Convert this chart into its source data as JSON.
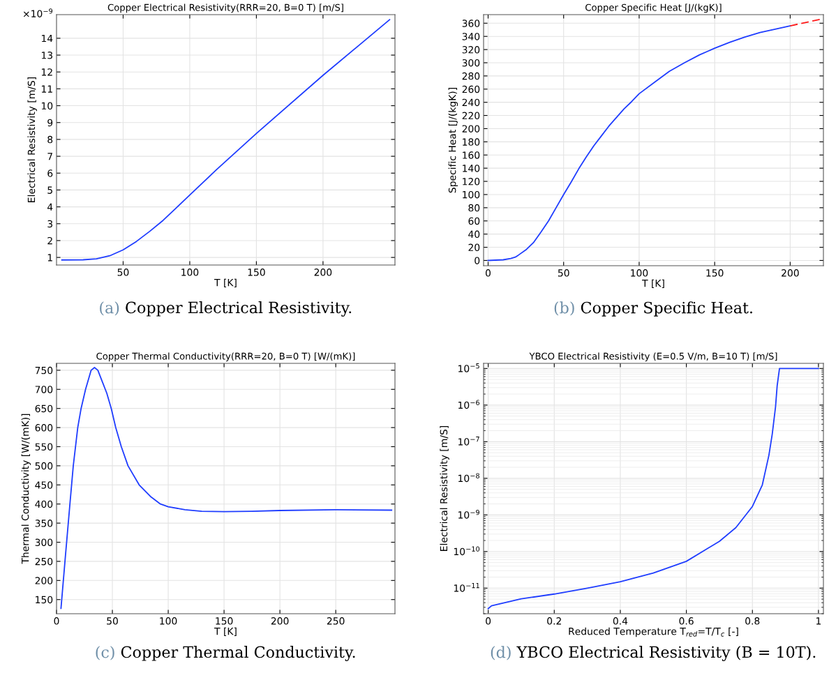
{
  "chart_data": [
    {
      "type": "line",
      "title": "Copper Electrical Resistivity(RRR=20, B=0 T) [m/S]",
      "xlabel": "T [K]",
      "ylabel": "Electrical Resistivity [m/S]",
      "grid": true,
      "xlim": [
        0,
        254
      ],
      "ylim": [
        0.55,
        15.4
      ],
      "xticks": [
        50,
        100,
        150,
        200
      ],
      "yticks": [
        1,
        2,
        3,
        4,
        5,
        6,
        7,
        8,
        9,
        10,
        11,
        12,
        13,
        14
      ],
      "series": [
        {
          "color": "#1f3dff",
          "x": [
            4,
            20,
            30,
            40,
            50,
            60,
            70,
            80,
            90,
            100,
            120,
            150,
            200,
            250
          ],
          "values": [
            0.85,
            0.86,
            0.92,
            1.1,
            1.45,
            1.95,
            2.55,
            3.2,
            3.95,
            4.7,
            6.2,
            8.35,
            11.8,
            15.1
          ]
        }
      ],
      "annotations": [
        "×10$^{−9}$",
        "(a) Copper Electrical Resistivity."
      ]
    },
    {
      "type": "line",
      "title": "Copper Specific Heat [J/(kgK)]",
      "xlabel": "T [K]",
      "ylabel": "Specific Heat [J/(kgK)]",
      "grid": true,
      "xlim": [
        -3,
        222
      ],
      "ylim": [
        -8,
        373
      ],
      "xticks": [
        0,
        50,
        100,
        150,
        200
      ],
      "yticks": [
        0,
        20,
        40,
        60,
        80,
        100,
        120,
        140,
        160,
        180,
        200,
        220,
        240,
        260,
        280,
        300,
        320,
        340,
        360
      ],
      "series": [
        {
          "color": "#1f3dff",
          "line_style": "solid",
          "x": [
            0,
            10,
            15,
            18,
            20,
            25,
            30,
            35,
            40,
            45,
            50,
            55,
            60,
            65,
            70,
            75,
            80,
            85,
            90,
            95,
            100,
            110,
            120,
            130,
            140,
            150,
            160,
            170,
            180,
            190,
            200
          ],
          "values": [
            0,
            1,
            3,
            5,
            8,
            16,
            27,
            43,
            60,
            80,
            100,
            119,
            139,
            157,
            174,
            189,
            204,
            217,
            230,
            241,
            253,
            270,
            287,
            300,
            312,
            322,
            331,
            339,
            346,
            351,
            356
          ]
        },
        {
          "color": "#ff1a1a",
          "line_style": "dashed",
          "x": [
            200,
            220
          ],
          "values": [
            356,
            366
          ]
        }
      ],
      "annotations": [
        "(b) Copper Specific Heat."
      ]
    },
    {
      "type": "line",
      "title": "Copper Thermal Conductivity(RRR=20, B=0 T) [W/(mK)]",
      "xlabel": "T [K]",
      "ylabel": "Thermal Conductivity [W/(mK)]",
      "grid": true,
      "xlim": [
        0,
        303
      ],
      "ylim": [
        113,
        768
      ],
      "xticks": [
        0,
        50,
        100,
        150,
        200,
        250
      ],
      "yticks": [
        150,
        200,
        250,
        300,
        350,
        400,
        450,
        500,
        550,
        600,
        650,
        700,
        750
      ],
      "series": [
        {
          "color": "#1f3dff",
          "x": [
            4,
            8,
            12,
            15,
            19,
            22,
            26,
            31,
            34,
            37,
            41,
            45,
            49,
            53,
            58,
            64,
            74,
            84,
            93,
            100,
            115,
            130,
            150,
            175,
            200,
            250,
            300
          ],
          "values": [
            127,
            265,
            400,
            500,
            600,
            650,
            700,
            750,
            757,
            750,
            720,
            690,
            650,
            600,
            550,
            500,
            450,
            420,
            400,
            393,
            385,
            381,
            380,
            381,
            383,
            385,
            384
          ]
        }
      ],
      "annotations": [
        "(c) Copper Thermal Conductivity."
      ]
    },
    {
      "type": "line",
      "title": "YBCO Electrical Resistivity (E=0.5 V/m, B=10 T) [m/S]",
      "xlabel": "Reduced Temperature T$_{red}$=T/T$_{c}$ [-]",
      "ylabel": "Electrical Resistivity [m/S]",
      "grid": true,
      "log": "y",
      "xlim": [
        -0.014,
        1.015
      ],
      "ylim": [
        2e-12,
        1.38e-05
      ],
      "xticks": [
        0,
        0.2,
        0.4,
        0.6,
        0.8,
        1
      ],
      "yticks": [
        {
          "value": 1e-11,
          "label": "10$^{−11}$"
        },
        {
          "value": 1e-10,
          "label": "10$^{−10}$"
        },
        {
          "value": 1e-09,
          "label": "10$^{−9}$"
        },
        {
          "value": 1e-08,
          "label": "10$^{−8}$"
        },
        {
          "value": 1e-07,
          "label": "10$^{−7}$"
        },
        {
          "value": 1e-06,
          "label": "10$^{−6}$"
        },
        {
          "value": 1e-05,
          "label": "10$^{−5}$"
        }
      ],
      "series": [
        {
          "color": "#1f3dff",
          "x": [
            0,
            0.01,
            0.1,
            0.2,
            0.3,
            0.4,
            0.5,
            0.6,
            0.7,
            0.75,
            0.8,
            0.83,
            0.85,
            0.86,
            0.87,
            0.875,
            0.882,
            1
          ],
          "values": [
            2.75e-12,
            3.3e-12,
            5.1e-12,
            6.9e-12,
            1e-11,
            1.5e-11,
            2.6e-11,
            5.4e-11,
            1.9e-10,
            4.5e-10,
            1.7e-09,
            6.6e-09,
            4.3e-08,
            1.6e-07,
            8.9e-07,
            3.4e-06,
            1e-05,
            1e-05
          ]
        }
      ],
      "annotations": [
        "(d) YBCO Electrical Resistivity (B = 10T)."
      ]
    }
  ]
}
